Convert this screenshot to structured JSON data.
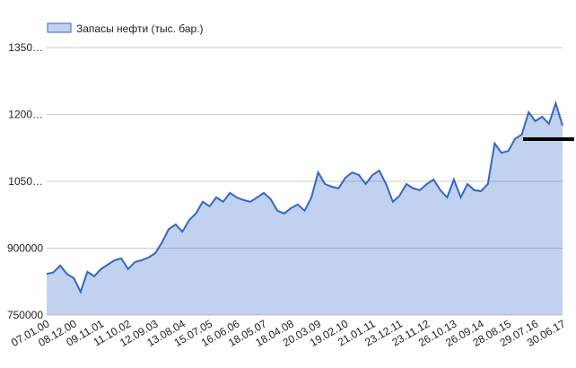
{
  "chart_data": {
    "type": "area",
    "series": [
      {
        "name": "Запасы нефти (тыс. бар.)",
        "color": "#3366cc",
        "values": [
          842000,
          846000,
          861000,
          842000,
          833000,
          802000,
          847000,
          837000,
          853000,
          863000,
          873000,
          877000,
          853000,
          869000,
          873000,
          879000,
          889000,
          913000,
          943000,
          953000,
          937000,
          963000,
          978000,
          1004000,
          994000,
          1014000,
          1004000,
          1024000,
          1014000,
          1008000,
          1004000,
          1014000,
          1024000,
          1010000,
          984000,
          978000,
          990000,
          998000,
          984000,
          1014000,
          1070000,
          1044000,
          1038000,
          1034000,
          1058000,
          1070000,
          1064000,
          1044000,
          1064000,
          1074000,
          1044000,
          1004000,
          1018000,
          1044000,
          1034000,
          1030000,
          1044000,
          1054000,
          1030000,
          1014000,
          1054000,
          1014000,
          1044000,
          1030000,
          1028000,
          1044000,
          1135000,
          1114000,
          1118000,
          1145000,
          1155000,
          1205000,
          1185000,
          1195000,
          1179000,
          1225000,
          1175000
        ]
      }
    ],
    "categories": [
      "07.01.00",
      null,
      null,
      null,
      "08.12.00",
      null,
      null,
      null,
      "09.11.01",
      null,
      null,
      null,
      "11.10.02",
      null,
      null,
      null,
      "12.09.03",
      null,
      null,
      null,
      "13.08.04",
      null,
      null,
      null,
      "15.07.05",
      null,
      null,
      null,
      "16.06.06",
      null,
      null,
      null,
      "18.05.07",
      null,
      null,
      null,
      "18.04.08",
      null,
      null,
      null,
      "20.03.09",
      null,
      null,
      null,
      "19.02.10",
      null,
      null,
      null,
      "21.01.11",
      null,
      null,
      null,
      "23.12.11",
      null,
      null,
      null,
      "23.11.12",
      null,
      null,
      null,
      "26.10.13",
      null,
      null,
      null,
      "26.09.14",
      null,
      null,
      null,
      "28.08.15",
      null,
      null,
      null,
      "29.07.16",
      null,
      null,
      null,
      "30.06.17"
    ],
    "ylim": [
      750000,
      1350000
    ],
    "yticks": [
      750000,
      900000,
      {
        "value": 1050000,
        "label": "1050…"
      },
      {
        "value": 1200000,
        "label": "1200…"
      },
      {
        "value": 1350000,
        "label": "1350…"
      }
    ],
    "grid": true,
    "legend": "top"
  }
}
